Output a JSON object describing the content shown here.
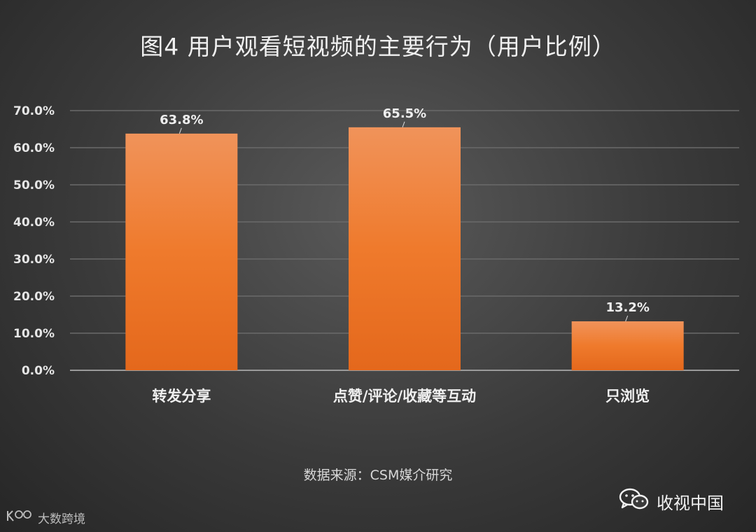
{
  "chart_data": {
    "type": "bar",
    "title": "图4  用户观看短视频的主要行为（用户比例）",
    "categories": [
      "转发分享",
      "点赞/评论/收藏等互动",
      "只浏览"
    ],
    "values": [
      63.8,
      65.5,
      13.2
    ],
    "data_labels": [
      "63.8%",
      "65.5%",
      "13.2%"
    ],
    "yticks": [
      "0.0%",
      "10.0%",
      "20.0%",
      "30.0%",
      "40.0%",
      "50.0%",
      "60.0%",
      "70.0%"
    ],
    "ylim": [
      0,
      70
    ],
    "grid": true,
    "bar_color": "#f07f2e",
    "background_color": "#3c3c3c"
  },
  "source": "数据来源：CSM媒介研究",
  "watermarks": {
    "right": "收视中国",
    "right_icon": "wechat-icon",
    "left": "大数跨境",
    "left_icon": "brand-logo-icon"
  }
}
